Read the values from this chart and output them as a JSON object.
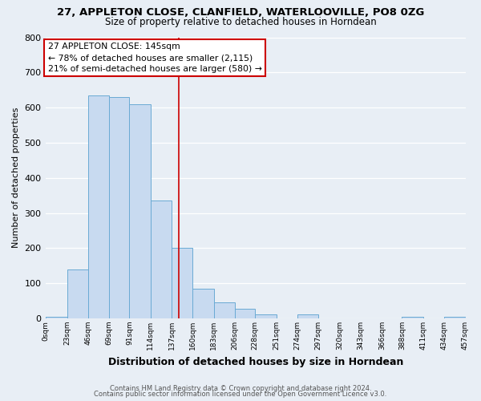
{
  "title": "27, APPLETON CLOSE, CLANFIELD, WATERLOOVILLE, PO8 0ZG",
  "subtitle": "Size of property relative to detached houses in Horndean",
  "xlabel": "Distribution of detached houses by size in Horndean",
  "ylabel": "Number of detached properties",
  "bar_color": "#c8daf0",
  "bar_edge_color": "#6aaad4",
  "bin_edges": [
    0,
    23,
    46,
    69,
    91,
    114,
    137,
    160,
    183,
    206,
    228,
    251,
    274,
    297,
    320,
    343,
    366,
    388,
    411,
    434,
    457
  ],
  "bin_counts": [
    5,
    140,
    635,
    630,
    610,
    335,
    200,
    85,
    45,
    27,
    12,
    0,
    12,
    0,
    0,
    0,
    0,
    5,
    0,
    5
  ],
  "tick_labels": [
    "0sqm",
    "23sqm",
    "46sqm",
    "69sqm",
    "91sqm",
    "114sqm",
    "137sqm",
    "160sqm",
    "183sqm",
    "206sqm",
    "228sqm",
    "251sqm",
    "274sqm",
    "297sqm",
    "320sqm",
    "343sqm",
    "366sqm",
    "388sqm",
    "411sqm",
    "434sqm",
    "457sqm"
  ],
  "vline_x": 145,
  "vline_color": "#cc0000",
  "annotation_title": "27 APPLETON CLOSE: 145sqm",
  "annotation_line1": "← 78% of detached houses are smaller (2,115)",
  "annotation_line2": "21% of semi-detached houses are larger (580) →",
  "annotation_box_color": "#ffffff",
  "annotation_box_edge": "#cc0000",
  "ylim": [
    0,
    800
  ],
  "yticks": [
    0,
    100,
    200,
    300,
    400,
    500,
    600,
    700,
    800
  ],
  "background_color": "#e8eef5",
  "grid_color": "#ffffff",
  "footer_line1": "Contains HM Land Registry data © Crown copyright and database right 2024.",
  "footer_line2": "Contains public sector information licensed under the Open Government Licence v3.0."
}
